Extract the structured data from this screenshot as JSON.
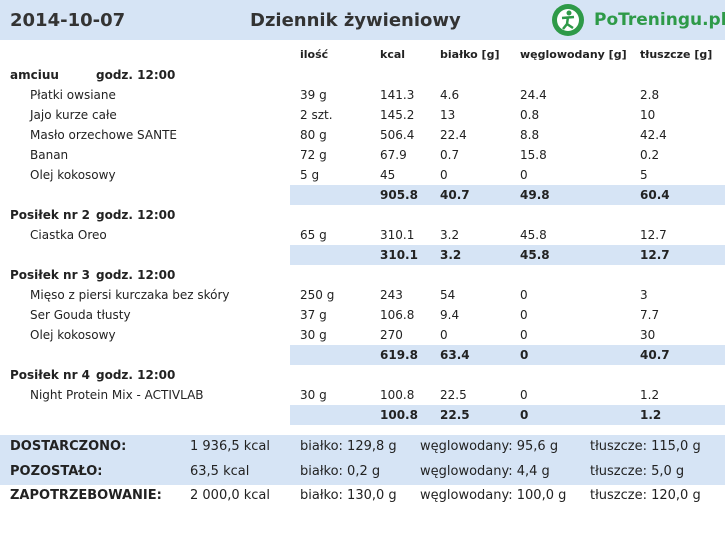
{
  "header": {
    "date": "2014-10-07",
    "title": "Dziennik żywieniowy",
    "logo": "PoTreningu.pl"
  },
  "columns": [
    "ilość",
    "kcal",
    "białko [g]",
    "węglowodany [g]",
    "tłuszcze [g]"
  ],
  "meals": [
    {
      "name": "amciuu",
      "time": "godz. 12:00",
      "items": [
        [
          "Płatki owsiane",
          "39 g",
          "141.3",
          "4.6",
          "24.4",
          "2.8"
        ],
        [
          "Jajo kurze całe",
          "2 szt.",
          "145.2",
          "13",
          "0.8",
          "10"
        ],
        [
          "Masło orzechowe SANTE",
          "80 g",
          "506.4",
          "22.4",
          "8.8",
          "42.4"
        ],
        [
          "Banan",
          "72 g",
          "67.9",
          "0.7",
          "15.8",
          "0.2"
        ],
        [
          "Olej kokosowy",
          "5 g",
          "45",
          "0",
          "0",
          "5"
        ]
      ],
      "totals": [
        "905.8",
        "40.7",
        "49.8",
        "60.4"
      ]
    },
    {
      "name": "Posiłek nr 2",
      "time": "godz. 12:00",
      "items": [
        [
          "Ciastka Oreo",
          "65 g",
          "310.1",
          "3.2",
          "45.8",
          "12.7"
        ]
      ],
      "totals": [
        "310.1",
        "3.2",
        "45.8",
        "12.7"
      ]
    },
    {
      "name": "Posiłek nr 3",
      "time": "godz. 12:00",
      "items": [
        [
          "Mięso z piersi kurczaka bez skóry",
          "250 g",
          "243",
          "54",
          "0",
          "3"
        ],
        [
          "Ser Gouda tłusty",
          "37 g",
          "106.8",
          "9.4",
          "0",
          "7.7"
        ],
        [
          "Olej kokosowy",
          "30 g",
          "270",
          "0",
          "0",
          "30"
        ]
      ],
      "totals": [
        "619.8",
        "63.4",
        "0",
        "40.7"
      ]
    },
    {
      "name": "Posiłek nr 4",
      "time": "godz. 12:00",
      "items": [
        [
          "Night Protein Mix - ACTIVLAB",
          "30 g",
          "100.8",
          "22.5",
          "0",
          "1.2"
        ]
      ],
      "totals": [
        "100.8",
        "22.5",
        "0",
        "1.2"
      ]
    }
  ],
  "summary": [
    [
      "DOSTARCZONO:",
      "1 936,5 kcal",
      "białko: 129,8 g",
      "węglowodany: 95,6 g",
      "tłuszcze: 115,0 g"
    ],
    [
      "POZOSTAŁO:",
      "63,5 kcal",
      "białko: 0,2 g",
      "węglowodany: 4,4 g",
      "tłuszcze: 5,0 g"
    ],
    [
      "ZAPOTRZEBOWANIE:",
      "2 000,0 kcal",
      "białko: 130,0 g",
      "węglowodany: 100,0 g",
      "tłuszcze: 120,0 g"
    ]
  ]
}
